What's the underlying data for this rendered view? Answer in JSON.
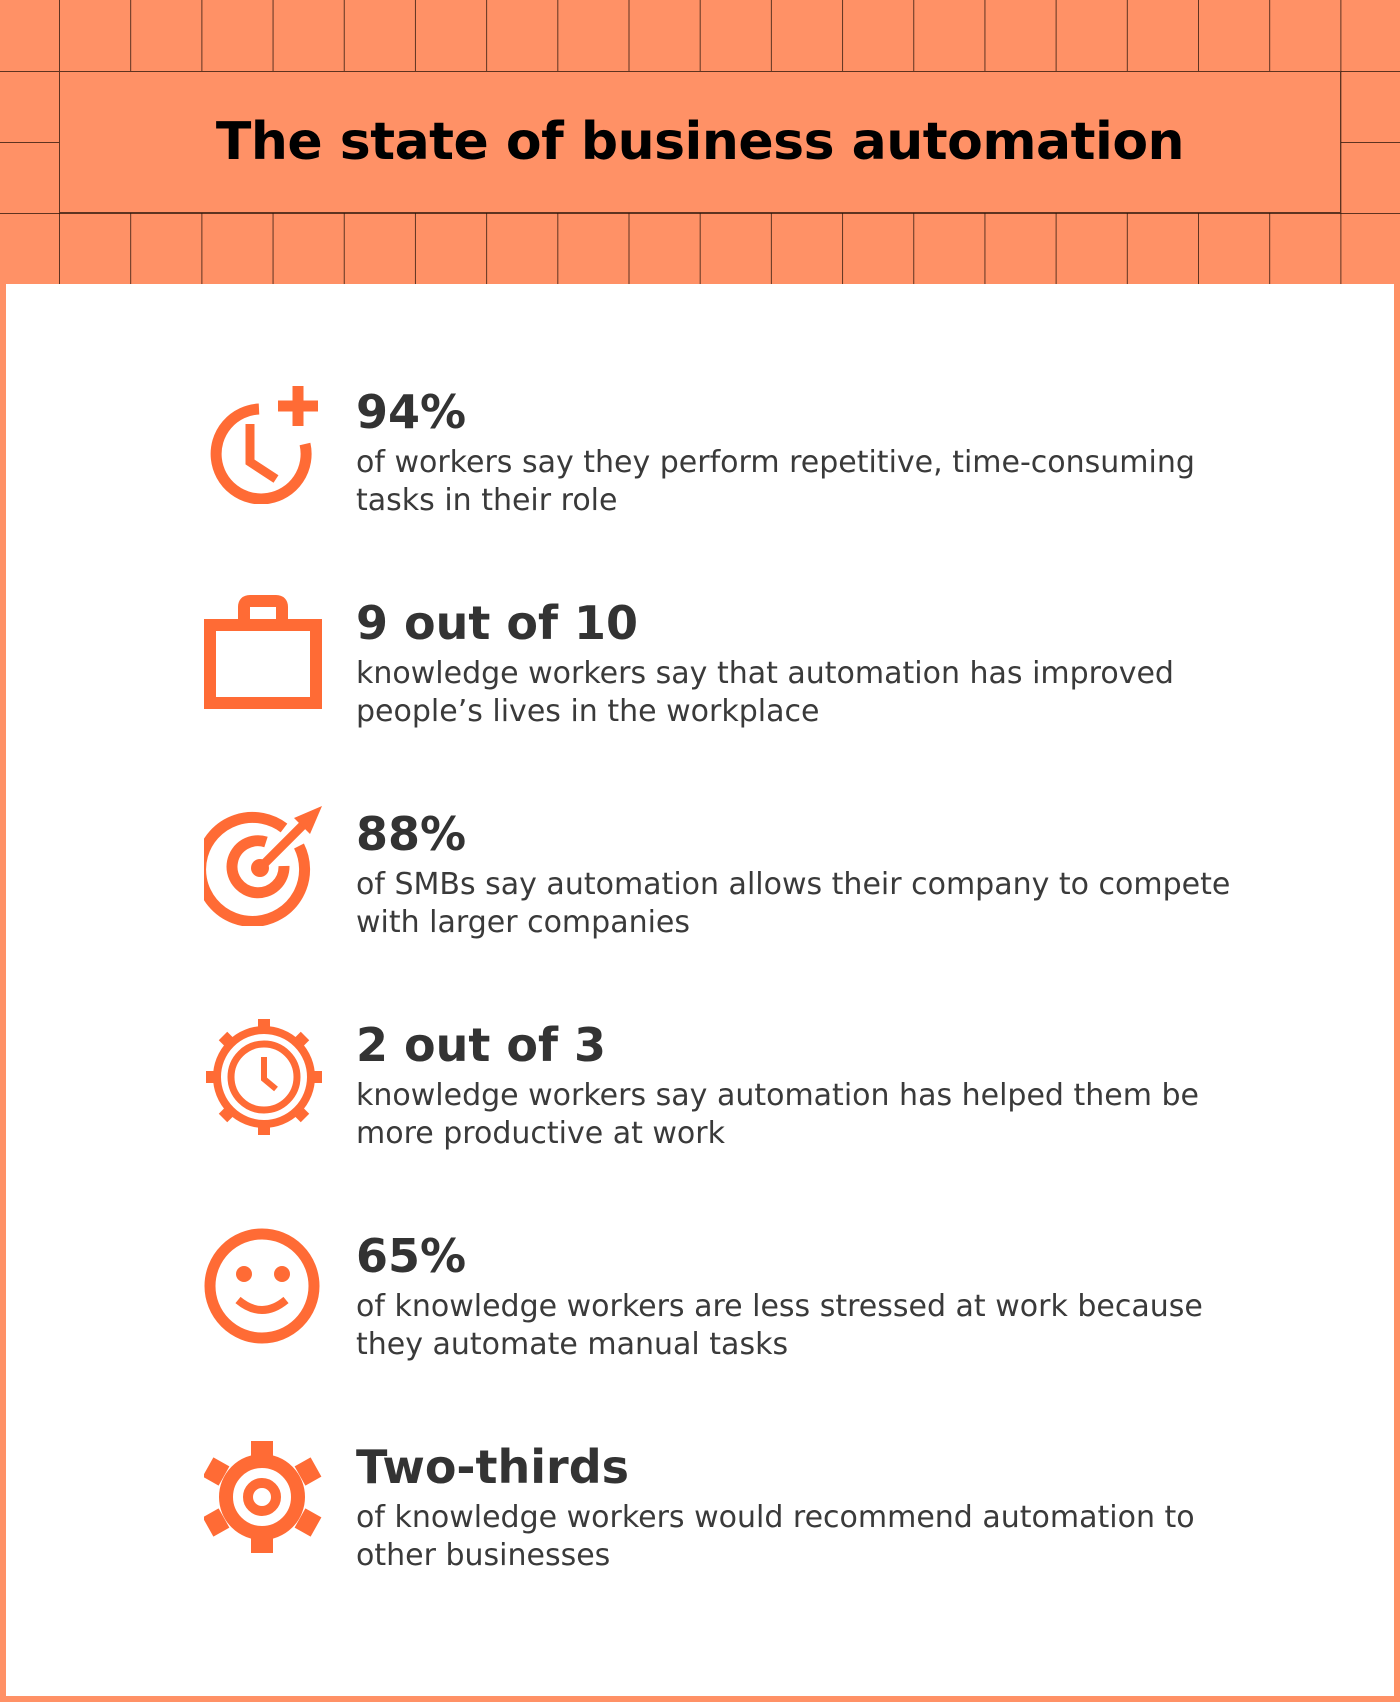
{
  "title": "The state of business automation",
  "colors": {
    "header": "#FF9166",
    "icon": "#FF6B35",
    "text": "#333333"
  },
  "stats": [
    {
      "icon": "clock-plus-icon",
      "value": "94%",
      "description": "of workers say they perform repetitive, time-consuming tasks in their role"
    },
    {
      "icon": "briefcase-icon",
      "value": "9 out of 10",
      "description": "knowledge workers say that automation has improved people’s lives in the workplace"
    },
    {
      "icon": "target-icon",
      "value": "88%",
      "description": "of SMBs say automation allows their company to compete with larger companies"
    },
    {
      "icon": "gear-clock-icon",
      "value": "2 out of 3",
      "description": "knowledge workers say automation has helped them be more productive at work"
    },
    {
      "icon": "smiley-icon",
      "value": "65%",
      "description": "of knowledge workers are less stressed at work because they automate manual tasks"
    },
    {
      "icon": "gear-icon",
      "value": "Two-thirds",
      "description": "of knowledge workers would recommend automation to other businesses"
    }
  ]
}
